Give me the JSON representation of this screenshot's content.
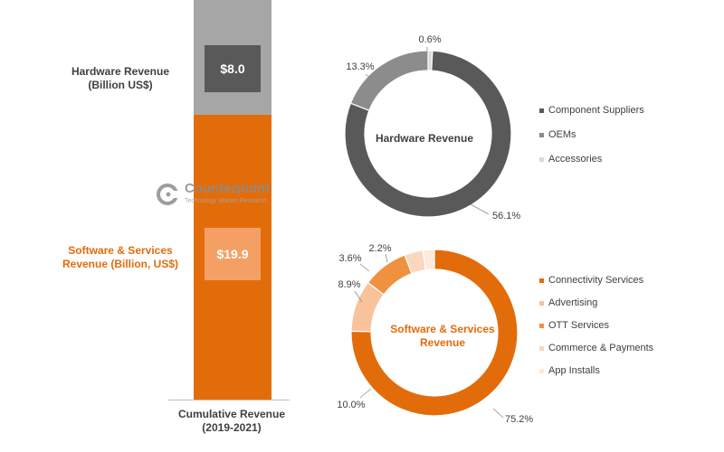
{
  "colors": {
    "hardware_top": "#A6A6A6",
    "software_bar": "#E36C0A",
    "hw_box": "#595959",
    "sw_box": "#F4A064",
    "dark_text": "#404040",
    "orange_text": "#E36C0A"
  },
  "stacked_bar": {
    "hardware_label": [
      "Hardware Revenue",
      "(Billion US$)"
    ],
    "hardware_value": "$8.0",
    "software_label": [
      "Software & Services",
      "Revenue (Billion, US$)"
    ],
    "software_value": "$19.9",
    "axis_label": [
      "Cumulative Revenue",
      "(2019-2021)"
    ]
  },
  "hardware_donut": {
    "center_label": "Hardware Revenue",
    "legend": [
      "Component Suppliers",
      "OEMs",
      "Accessories"
    ]
  },
  "software_donut": {
    "center_label": [
      "Software & Services",
      "Revenue"
    ],
    "legend": [
      "Connectivity Services",
      "Advertising",
      "OTT Services",
      "Commerce & Payments",
      "App Installs"
    ]
  },
  "watermark": {
    "brand": "Counterpoint",
    "tagline": "Technology Market Research"
  },
  "chart_data": [
    {
      "type": "bar",
      "stacked": true,
      "categories": [
        "Cumulative Revenue (2019-2021)"
      ],
      "series": [
        {
          "name": "Software & Services Revenue (Billion, US$)",
          "values": [
            19.9
          ],
          "color": "#E36C0A"
        },
        {
          "name": "Hardware Revenue (Billion US$)",
          "values": [
            8.0
          ],
          "color": "#A6A6A6"
        }
      ],
      "data_labels": [
        "$19.9",
        "$8.0"
      ]
    },
    {
      "type": "pie",
      "donut": true,
      "title": "Hardware Revenue",
      "slices": [
        {
          "label": "Component Suppliers",
          "value": 56.1,
          "text": "56.1%",
          "color": "#595959"
        },
        {
          "label": "OEMs",
          "value": 13.3,
          "text": "13.3%",
          "color": "#8C8C8C"
        },
        {
          "label": "Accessories",
          "value": 0.6,
          "text": "0.6%",
          "color": "#D9D9D9"
        }
      ],
      "legend_position": "right"
    },
    {
      "type": "pie",
      "donut": true,
      "title": "Software & Services Revenue",
      "slices": [
        {
          "label": "Connectivity Services",
          "value": 75.2,
          "text": "75.2%",
          "color": "#E36C0A"
        },
        {
          "label": "Advertising",
          "value": 10.0,
          "text": "10.0%",
          "color": "#F8C29A"
        },
        {
          "label": "OTT Services",
          "value": 8.9,
          "text": "8.9%",
          "color": "#F0913F"
        },
        {
          "label": "Commerce & Payments",
          "value": 3.6,
          "text": "3.6%",
          "color": "#FAD7BD"
        },
        {
          "label": "App Installs",
          "value": 2.2,
          "text": "2.2%",
          "color": "#FDEADB"
        }
      ],
      "legend_position": "right"
    }
  ]
}
